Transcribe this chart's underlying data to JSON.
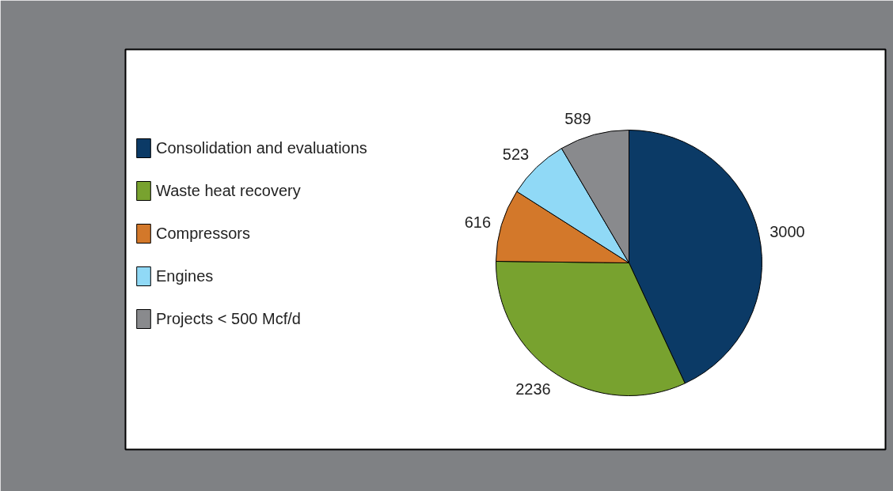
{
  "chart_data": {
    "type": "pie",
    "categories": [
      "Consolidation and evaluations",
      "Waste heat recovery",
      "Compressors",
      "Engines",
      "Projects < 500 Mcf/d"
    ],
    "values": [
      3000,
      2236,
      616,
      523,
      589
    ],
    "colors": [
      "#0b3a66",
      "#78a22f",
      "#d3782a",
      "#90d9f6",
      "#898a8d"
    ],
    "data_labels": true,
    "legend": "left"
  }
}
